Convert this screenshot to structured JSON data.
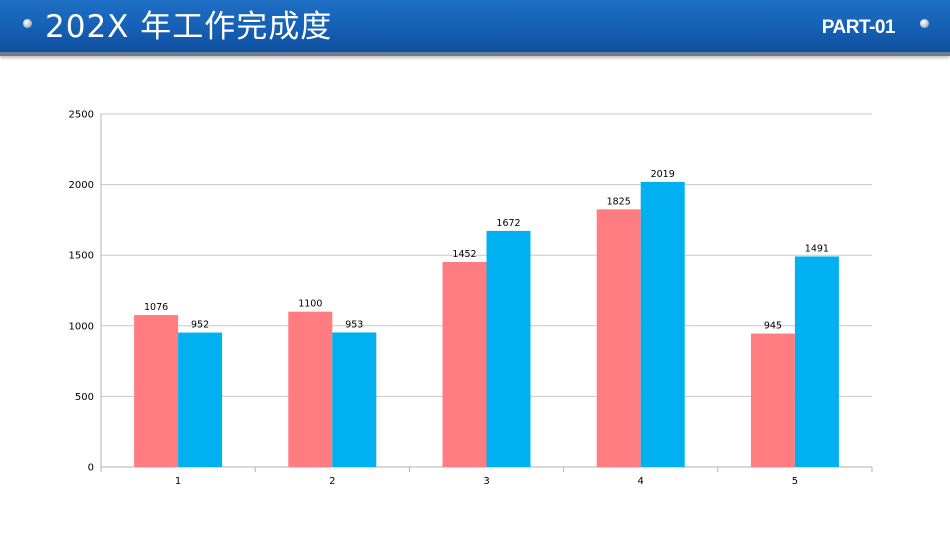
{
  "header": {
    "title": "202X 年工作完成度",
    "part_label": "PART-01"
  },
  "chart_data": {
    "type": "bar",
    "title": "",
    "xlabel": "",
    "ylabel": "",
    "categories": [
      "1",
      "2",
      "3",
      "4",
      "5"
    ],
    "series": [
      {
        "values": [
          1076,
          1100,
          1452,
          1825,
          945
        ],
        "color": "#ff7c80"
      },
      {
        "values": [
          952,
          953,
          1672,
          2019,
          1491
        ],
        "color": "#00b0f0"
      }
    ],
    "ylim": [
      0,
      2500
    ],
    "yticks": [
      0,
      500,
      1000,
      1500,
      2000,
      2500
    ],
    "grid": true,
    "legend": "none",
    "data_labels": true
  },
  "colors": {
    "header_blue": "#1560b5",
    "gridline": "#c8c8c8",
    "axis": "#b0b0b0"
  }
}
